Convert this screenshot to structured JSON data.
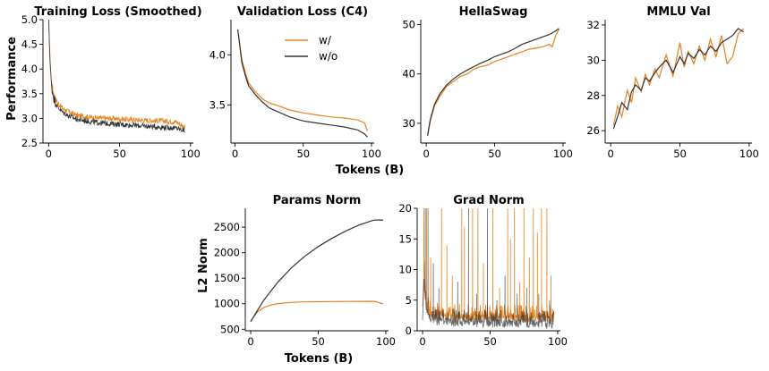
{
  "figure": {
    "shared_xlabel": "Tokens (B)",
    "shared_ylabel": "Performance",
    "colors": {
      "w/": "#e8821e",
      "w/o": "#333333"
    }
  },
  "legend": {
    "entries": [
      "w/",
      "w/o"
    ],
    "placement": "inside Validation Loss (C4) panel, upper right"
  },
  "chart_data": [
    {
      "type": "line",
      "title": "Training Loss (Smoothed)",
      "ylabel": "Performance",
      "xlim": [
        -4,
        102
      ],
      "ylim": [
        2.5,
        5.0
      ],
      "xticks": [
        0,
        50,
        100
      ],
      "yticks": [
        2.5,
        3.0,
        3.5,
        4.0,
        4.5,
        5.0
      ],
      "ytick_labels": [
        "2.5",
        "3.0",
        "3.5",
        "4.0",
        "4.5",
        "5.0"
      ],
      "noisy": true,
      "series": [
        {
          "name": "w/",
          "x": [
            0,
            1,
            2,
            4,
            6,
            10,
            15,
            20,
            30,
            40,
            50,
            60,
            70,
            80,
            90,
            96
          ],
          "values": [
            5.05,
            4.2,
            3.7,
            3.45,
            3.33,
            3.2,
            3.12,
            3.06,
            3.02,
            3.0,
            2.99,
            2.97,
            2.96,
            2.95,
            2.93,
            2.82
          ]
        },
        {
          "name": "w/o",
          "x": [
            0,
            1,
            2,
            4,
            6,
            10,
            15,
            20,
            30,
            40,
            50,
            60,
            70,
            80,
            90,
            96
          ],
          "values": [
            5.05,
            4.15,
            3.65,
            3.38,
            3.25,
            3.12,
            3.04,
            2.98,
            2.93,
            2.9,
            2.88,
            2.86,
            2.84,
            2.82,
            2.8,
            2.75
          ]
        }
      ]
    },
    {
      "type": "line",
      "title": "Validation Loss (C4)",
      "xlabel": "Tokens (B)",
      "xlim": [
        -3,
        102
      ],
      "ylim": [
        3.12,
        4.35
      ],
      "xticks": [
        0,
        50,
        100
      ],
      "yticks": [
        3.5,
        4.0
      ],
      "ytick_labels": [
        "3.5",
        "4.0"
      ],
      "series": [
        {
          "name": "w/",
          "x": [
            2,
            5,
            8,
            10,
            15,
            20,
            25,
            30,
            40,
            50,
            60,
            70,
            80,
            90,
            95,
            97
          ],
          "values": [
            4.25,
            3.95,
            3.8,
            3.72,
            3.63,
            3.56,
            3.52,
            3.5,
            3.45,
            3.42,
            3.4,
            3.38,
            3.37,
            3.35,
            3.32,
            3.24
          ]
        },
        {
          "name": "w/o",
          "x": [
            2,
            5,
            8,
            10,
            15,
            20,
            25,
            30,
            40,
            50,
            60,
            70,
            80,
            90,
            95,
            97
          ],
          "values": [
            4.25,
            3.92,
            3.77,
            3.69,
            3.6,
            3.53,
            3.47,
            3.44,
            3.38,
            3.34,
            3.32,
            3.3,
            3.28,
            3.25,
            3.21,
            3.18
          ]
        }
      ]
    },
    {
      "type": "line",
      "title": "HellaSwag",
      "xlim": [
        -4,
        102
      ],
      "ylim": [
        26,
        51
      ],
      "xticks": [
        0,
        50,
        100
      ],
      "yticks": [
        30,
        40,
        50
      ],
      "ytick_labels": [
        "30",
        "40",
        "50"
      ],
      "series": [
        {
          "name": "w/",
          "x": [
            1,
            3,
            6,
            10,
            15,
            20,
            25,
            30,
            35,
            40,
            45,
            50,
            55,
            60,
            65,
            70,
            75,
            80,
            85,
            90,
            92,
            95,
            97
          ],
          "values": [
            27.5,
            30.5,
            33.5,
            35.5,
            37.5,
            38.5,
            39.5,
            40,
            41,
            41.5,
            41.8,
            42.5,
            43,
            43.5,
            44,
            44.5,
            45,
            45.2,
            45.5,
            46,
            45.5,
            48,
            49
          ]
        },
        {
          "name": "w/o",
          "x": [
            1,
            3,
            6,
            10,
            15,
            20,
            25,
            30,
            35,
            40,
            45,
            50,
            55,
            60,
            65,
            70,
            75,
            80,
            85,
            90,
            92,
            95,
            97
          ],
          "values": [
            27.5,
            30.8,
            33.8,
            36,
            37.8,
            39,
            40,
            40.8,
            41.5,
            42.2,
            42.8,
            43.5,
            44,
            44.5,
            45.2,
            46,
            46.5,
            47,
            47.5,
            48,
            48.3,
            48.8,
            49.2
          ]
        }
      ]
    },
    {
      "type": "line",
      "title": "MMLU Val",
      "xlim": [
        -4,
        102
      ],
      "ylim": [
        25.3,
        32.3
      ],
      "xticks": [
        0,
        50,
        100
      ],
      "yticks": [
        26,
        28,
        30,
        32
      ],
      "ytick_labels": [
        "26",
        "28",
        "30",
        "32"
      ],
      "series": [
        {
          "name": "w/",
          "x": [
            2,
            5,
            8,
            12,
            15,
            18,
            22,
            25,
            28,
            32,
            35,
            40,
            45,
            50,
            53,
            56,
            60,
            64,
            68,
            72,
            76,
            80,
            84,
            88,
            92,
            96
          ],
          "values": [
            26.3,
            27.4,
            26.8,
            28.3,
            27.6,
            29,
            28.2,
            29.2,
            28.6,
            29.5,
            29,
            30.3,
            29.1,
            31,
            29.6,
            30.5,
            29.8,
            30.8,
            30,
            31.2,
            30.2,
            31.4,
            29.8,
            30.2,
            31.5,
            31.8
          ]
        },
        {
          "name": "w/o",
          "x": [
            2,
            5,
            8,
            12,
            15,
            18,
            22,
            25,
            28,
            32,
            35,
            40,
            45,
            50,
            53,
            56,
            60,
            64,
            68,
            72,
            76,
            80,
            84,
            88,
            92,
            96
          ],
          "values": [
            26.1,
            26.8,
            27.6,
            27.2,
            28.2,
            28.6,
            28.3,
            29,
            28.8,
            29.3,
            29.6,
            30,
            29.3,
            30.2,
            29.8,
            30.4,
            30.1,
            30.6,
            30.3,
            30.8,
            30.5,
            31,
            31.2,
            31.4,
            31.8,
            31.6
          ]
        }
      ]
    },
    {
      "type": "line",
      "title": "Params Norm",
      "xlabel": "Tokens (B)",
      "ylabel": "L2 Norm",
      "xlim": [
        -4,
        102
      ],
      "ylim": [
        470,
        2870
      ],
      "xticks": [
        0,
        50,
        100
      ],
      "yticks": [
        500,
        1000,
        1500,
        2000,
        2500
      ],
      "ytick_labels": [
        "500",
        "1000",
        "1500",
        "2000",
        "2500"
      ],
      "series": [
        {
          "name": "w/",
          "x": [
            0,
            2,
            5,
            10,
            15,
            20,
            25,
            30,
            40,
            50,
            60,
            70,
            80,
            90,
            93,
            96,
            98
          ],
          "values": [
            650,
            740,
            840,
            930,
            975,
            1000,
            1015,
            1025,
            1035,
            1040,
            1043,
            1045,
            1046,
            1048,
            1040,
            1010,
            1000
          ]
        },
        {
          "name": "w/o",
          "x": [
            0,
            5,
            10,
            20,
            30,
            40,
            50,
            60,
            70,
            80,
            90,
            92,
            95,
            98
          ],
          "values": [
            650,
            870,
            1080,
            1420,
            1700,
            1930,
            2120,
            2280,
            2420,
            2540,
            2630,
            2640,
            2640,
            2640
          ]
        }
      ]
    },
    {
      "type": "line",
      "title": "Grad Norm",
      "xlim": [
        -4,
        102
      ],
      "ylim": [
        0,
        20
      ],
      "xticks": [
        0,
        50,
        100
      ],
      "yticks": [
        0,
        5,
        10,
        15,
        20
      ],
      "ytick_labels": [
        "0",
        "5",
        "10",
        "15",
        "20"
      ],
      "noisy": true,
      "series": [
        {
          "name": "w/",
          "x": [
            0,
            1,
            3,
            5,
            10,
            20,
            30,
            40,
            50,
            60,
            70,
            80,
            90,
            97
          ],
          "values": [
            2,
            10,
            4,
            3,
            2.5,
            2.3,
            2.2,
            2.2,
            2.2,
            2.1,
            2.1,
            2.1,
            2.1,
            2.0
          ],
          "spikes": [
            [
              1,
              20
            ],
            [
              3,
              20
            ],
            [
              6,
              12
            ],
            [
              14,
              20
            ],
            [
              18,
              14
            ],
            [
              22,
              9
            ],
            [
              29,
              20
            ],
            [
              31,
              17
            ],
            [
              37,
              20
            ],
            [
              41,
              20
            ],
            [
              45,
              11
            ],
            [
              52,
              20
            ],
            [
              57,
              7
            ],
            [
              63,
              20
            ],
            [
              65,
              15
            ],
            [
              68,
              20
            ],
            [
              72,
              8
            ],
            [
              75,
              20
            ],
            [
              79,
              12
            ],
            [
              82,
              20
            ],
            [
              85,
              16
            ],
            [
              88,
              20
            ],
            [
              92,
              20
            ],
            [
              95,
              9
            ]
          ]
        },
        {
          "name": "w/o",
          "x": [
            0,
            1,
            3,
            5,
            10,
            20,
            30,
            40,
            50,
            60,
            70,
            80,
            90,
            97
          ],
          "values": [
            2,
            8,
            3,
            2.2,
            1.6,
            1.4,
            1.3,
            1.3,
            1.2,
            1.2,
            1.2,
            1.2,
            1.1,
            1.1
          ],
          "spikes": [
            [
              2,
              20
            ],
            [
              4,
              20
            ],
            [
              8,
              11
            ],
            [
              12,
              7
            ],
            [
              26,
              8
            ],
            [
              34,
              20
            ],
            [
              40,
              6
            ],
            [
              48,
              20
            ],
            [
              55,
              5
            ],
            [
              61,
              9
            ],
            [
              70,
              6
            ],
            [
              77,
              7
            ],
            [
              86,
              6
            ],
            [
              94,
              5
            ]
          ]
        }
      ]
    }
  ]
}
